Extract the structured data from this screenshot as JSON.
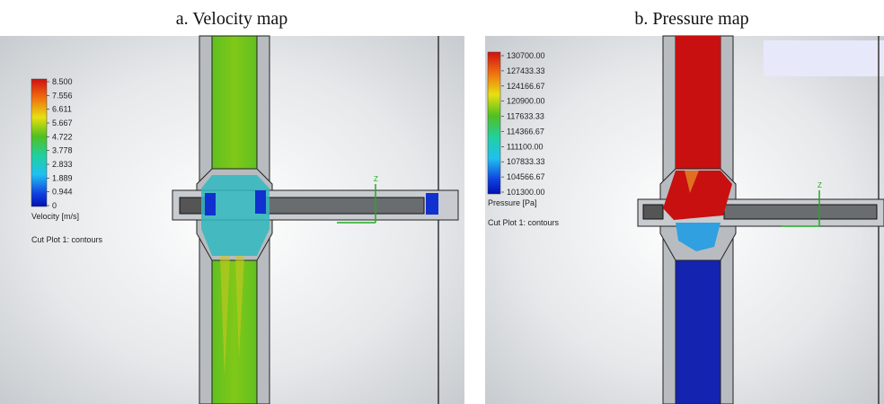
{
  "panels": [
    {
      "caption": "a. Velocity map",
      "legend_values": [
        "8.500",
        "7.556",
        "6.611",
        "5.667",
        "4.722",
        "3.778",
        "2.833",
        "1.889",
        "0.944",
        "0"
      ],
      "legend_title": "Velocity [m/s]",
      "plot_label": "Cut Plot 1: contours",
      "axis_label": "Z"
    },
    {
      "caption": "b. Pressure map",
      "legend_values": [
        "130700.00",
        "127433.33",
        "124166.67",
        "120900.00",
        "117633.33",
        "114366.67",
        "111100.00",
        "107833.33",
        "104566.67",
        "101300.00"
      ],
      "legend_title": "Pressure [Pa]",
      "plot_label": "Cut Plot 1: contours",
      "axis_label": "Z"
    }
  ]
}
